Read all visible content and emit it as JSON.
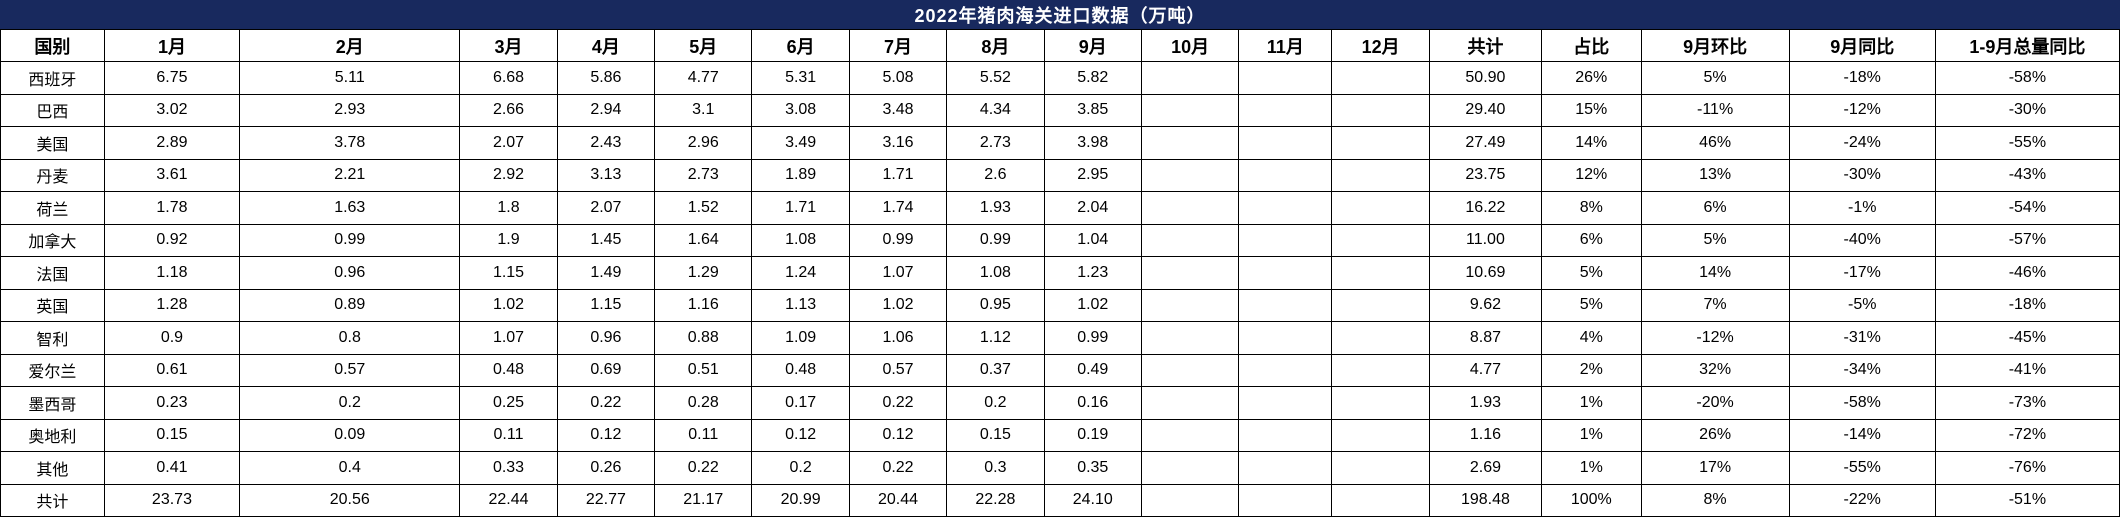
{
  "title": "2022年猪肉海关进口数据（万吨）",
  "colors": {
    "title_bg": "#18295E",
    "title_text": "#FFFFFF",
    "border": "#000000",
    "cell_bg": "#FFFFFF",
    "cell_text": "#000000"
  },
  "chart_data": {
    "type": "table",
    "title": "2022年猪肉海关进口数据（万吨）",
    "unit": "万吨",
    "columns": [
      "国别",
      "1月",
      "2月",
      "3月",
      "4月",
      "5月",
      "6月",
      "7月",
      "8月",
      "9月",
      "10月",
      "11月",
      "12月",
      "共计",
      "占比",
      "9月环比",
      "9月同比",
      "1-9月总量同比"
    ],
    "rows": [
      [
        "西班牙",
        "6.75",
        "5.11",
        "6.68",
        "5.86",
        "4.77",
        "5.31",
        "5.08",
        "5.52",
        "5.82",
        "",
        "",
        "",
        "50.90",
        "26%",
        "5%",
        "-18%",
        "-58%"
      ],
      [
        "巴西",
        "3.02",
        "2.93",
        "2.66",
        "2.94",
        "3.1",
        "3.08",
        "3.48",
        "4.34",
        "3.85",
        "",
        "",
        "",
        "29.40",
        "15%",
        "-11%",
        "-12%",
        "-30%"
      ],
      [
        "美国",
        "2.89",
        "3.78",
        "2.07",
        "2.43",
        "2.96",
        "3.49",
        "3.16",
        "2.73",
        "3.98",
        "",
        "",
        "",
        "27.49",
        "14%",
        "46%",
        "-24%",
        "-55%"
      ],
      [
        "丹麦",
        "3.61",
        "2.21",
        "2.92",
        "3.13",
        "2.73",
        "1.89",
        "1.71",
        "2.6",
        "2.95",
        "",
        "",
        "",
        "23.75",
        "12%",
        "13%",
        "-30%",
        "-43%"
      ],
      [
        "荷兰",
        "1.78",
        "1.63",
        "1.8",
        "2.07",
        "1.52",
        "1.71",
        "1.74",
        "1.93",
        "2.04",
        "",
        "",
        "",
        "16.22",
        "8%",
        "6%",
        "-1%",
        "-54%"
      ],
      [
        "加拿大",
        "0.92",
        "0.99",
        "1.9",
        "1.45",
        "1.64",
        "1.08",
        "0.99",
        "0.99",
        "1.04",
        "",
        "",
        "",
        "11.00",
        "6%",
        "5%",
        "-40%",
        "-57%"
      ],
      [
        "法国",
        "1.18",
        "0.96",
        "1.15",
        "1.49",
        "1.29",
        "1.24",
        "1.07",
        "1.08",
        "1.23",
        "",
        "",
        "",
        "10.69",
        "5%",
        "14%",
        "-17%",
        "-46%"
      ],
      [
        "英国",
        "1.28",
        "0.89",
        "1.02",
        "1.15",
        "1.16",
        "1.13",
        "1.02",
        "0.95",
        "1.02",
        "",
        "",
        "",
        "9.62",
        "5%",
        "7%",
        "-5%",
        "-18%"
      ],
      [
        "智利",
        "0.9",
        "0.8",
        "1.07",
        "0.96",
        "0.88",
        "1.09",
        "1.06",
        "1.12",
        "0.99",
        "",
        "",
        "",
        "8.87",
        "4%",
        "-12%",
        "-31%",
        "-45%"
      ],
      [
        "爱尔兰",
        "0.61",
        "0.57",
        "0.48",
        "0.69",
        "0.51",
        "0.48",
        "0.57",
        "0.37",
        "0.49",
        "",
        "",
        "",
        "4.77",
        "2%",
        "32%",
        "-34%",
        "-41%"
      ],
      [
        "墨西哥",
        "0.23",
        "0.2",
        "0.25",
        "0.22",
        "0.28",
        "0.17",
        "0.22",
        "0.2",
        "0.16",
        "",
        "",
        "",
        "1.93",
        "1%",
        "-20%",
        "-58%",
        "-73%"
      ],
      [
        "奥地利",
        "0.15",
        "0.09",
        "0.11",
        "0.12",
        "0.11",
        "0.12",
        "0.12",
        "0.15",
        "0.19",
        "",
        "",
        "",
        "1.16",
        "1%",
        "26%",
        "-14%",
        "-72%"
      ],
      [
        "其他",
        "0.41",
        "0.4",
        "0.33",
        "0.26",
        "0.22",
        "0.2",
        "0.22",
        "0.3",
        "0.35",
        "",
        "",
        "",
        "2.69",
        "1%",
        "17%",
        "-55%",
        "-76%"
      ],
      [
        "共计",
        "23.73",
        "20.56",
        "22.44",
        "22.77",
        "21.17",
        "20.99",
        "20.44",
        "22.28",
        "24.10",
        "",
        "",
        "",
        "198.48",
        "100%",
        "8%",
        "-22%",
        "-51%"
      ]
    ]
  }
}
